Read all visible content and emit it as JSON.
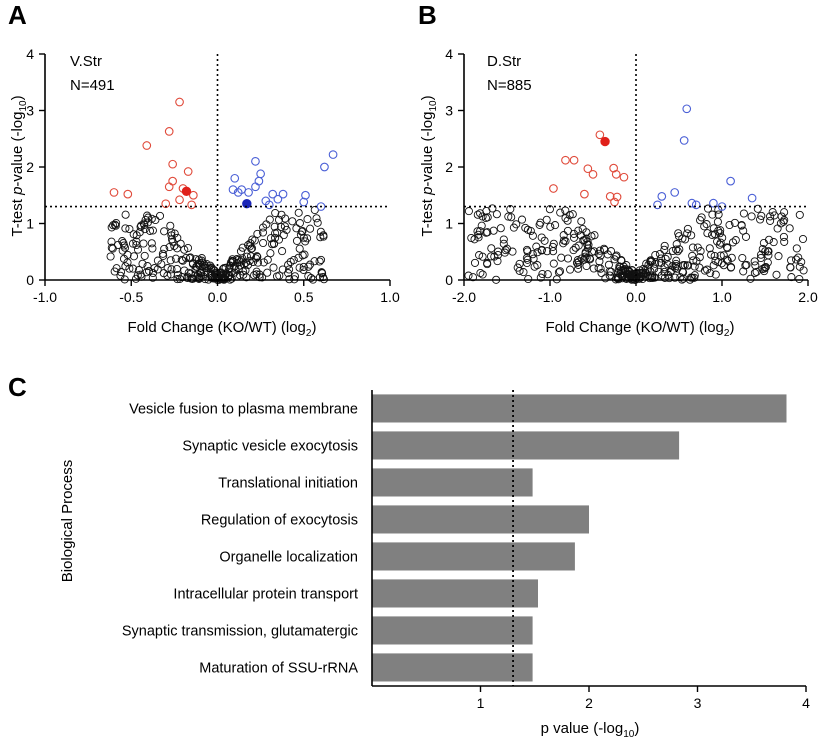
{
  "colors": {
    "up": "#4a5fd6",
    "down": "#e04a3a",
    "neutral": "#111111",
    "highlight_down": "#e0201a",
    "highlight_up": "#1a25b8",
    "bar": "#808080"
  },
  "chart_data": [
    {
      "panel": "A",
      "type": "scatter",
      "region": "V.Str",
      "n_label": "N=491",
      "xlabel": "Fold Change (KO/WT) (log",
      "xlabel_sub": "2",
      "ylabel_pre": "T-test ",
      "ylabel_italic": "p",
      "ylabel_post": "-value  (-log",
      "ylabel_sub": "10",
      "xlim": [
        -1.0,
        1.0
      ],
      "ylim": [
        0,
        4
      ],
      "xticks": [
        "-1.0",
        "-0.5",
        "0.0",
        "0.5",
        "1.0"
      ],
      "yticks": [
        "0",
        "1",
        "2",
        "3",
        "4"
      ],
      "threshold_y": 1.3,
      "points_up": [
        [
          0.67,
          2.22
        ],
        [
          0.62,
          2.0
        ],
        [
          0.6,
          1.3
        ],
        [
          0.51,
          1.5
        ],
        [
          0.5,
          1.38
        ],
        [
          0.38,
          1.52
        ],
        [
          0.35,
          1.43
        ],
        [
          0.32,
          1.52
        ],
        [
          0.22,
          2.1
        ],
        [
          0.25,
          1.88
        ],
        [
          0.22,
          1.65
        ],
        [
          0.18,
          1.55
        ],
        [
          0.14,
          1.6
        ],
        [
          0.28,
          1.4
        ],
        [
          0.1,
          1.8
        ],
        [
          0.12,
          1.55
        ],
        [
          0.09,
          1.6
        ],
        [
          0.3,
          1.33
        ],
        [
          0.24,
          1.75
        ]
      ],
      "points_down": [
        [
          -0.6,
          1.55
        ],
        [
          -0.52,
          1.52
        ],
        [
          -0.41,
          2.38
        ],
        [
          -0.28,
          2.63
        ],
        [
          -0.22,
          3.15
        ],
        [
          -0.26,
          2.05
        ],
        [
          -0.28,
          1.65
        ],
        [
          -0.26,
          1.75
        ],
        [
          -0.2,
          1.62
        ],
        [
          -0.17,
          1.92
        ],
        [
          -0.22,
          1.42
        ],
        [
          -0.3,
          1.35
        ],
        [
          -0.15,
          1.33
        ],
        [
          -0.14,
          1.5
        ]
      ],
      "highlight_down": [
        [
          -0.18,
          1.57
        ]
      ],
      "highlight_up": [
        [
          0.17,
          1.35
        ]
      ]
    },
    {
      "panel": "B",
      "type": "scatter",
      "region": "D.Str",
      "n_label": "N=885",
      "xlabel": "Fold Change (KO/WT) (log",
      "xlabel_sub": "2",
      "ylabel_pre": "T-test ",
      "ylabel_italic": "p",
      "ylabel_post": "-value  (-log",
      "ylabel_sub": "10",
      "xlim": [
        -2.0,
        2.0
      ],
      "ylim": [
        0,
        4
      ],
      "xticks": [
        "-2.0",
        "-1.0",
        "0.0",
        "1.0",
        "2.0"
      ],
      "yticks": [
        "0",
        "1",
        "2",
        "3",
        "4"
      ],
      "threshold_y": 1.3,
      "points_up": [
        [
          0.59,
          3.03
        ],
        [
          0.56,
          2.47
        ],
        [
          1.1,
          1.75
        ],
        [
          1.35,
          1.45
        ],
        [
          0.7,
          1.33
        ],
        [
          0.65,
          1.36
        ],
        [
          0.45,
          1.55
        ],
        [
          0.3,
          1.48
        ],
        [
          0.9,
          1.36
        ],
        [
          0.25,
          1.33
        ],
        [
          1.0,
          1.3
        ]
      ],
      "points_down": [
        [
          -0.72,
          2.12
        ],
        [
          -0.82,
          2.12
        ],
        [
          -0.42,
          2.57
        ],
        [
          -0.56,
          1.97
        ],
        [
          -0.26,
          1.98
        ],
        [
          -0.23,
          1.87
        ],
        [
          -0.96,
          1.62
        ],
        [
          -0.5,
          1.87
        ],
        [
          -0.3,
          1.48
        ],
        [
          -0.22,
          1.47
        ],
        [
          -0.14,
          1.82
        ],
        [
          -0.6,
          1.52
        ],
        [
          -0.25,
          1.38
        ]
      ],
      "highlight_down": [
        [
          -0.36,
          2.45
        ]
      ],
      "highlight_up": []
    },
    {
      "panel": "C",
      "type": "bar",
      "orientation": "horizontal",
      "categories_label": "Biological Process",
      "categories": [
        "Vesicle fusion to plasma membrane",
        "Synaptic vesicle exocytosis",
        "Translational initiation",
        "Regulation of exocytosis",
        "Organelle localization",
        "Intracellular protein transport",
        "Synaptic transmission, glutamatergic",
        "Maturation of SSU-rRNA"
      ],
      "values": [
        3.82,
        2.83,
        1.48,
        2.0,
        1.87,
        1.53,
        1.48,
        1.48
      ],
      "xlabel": "p value (-log",
      "xlabel_sub": "10",
      "xlabel_close": ")",
      "xlim": [
        0,
        4
      ],
      "xticks": [
        "1",
        "2",
        "3",
        "4"
      ],
      "threshold_x": 1.3
    }
  ]
}
